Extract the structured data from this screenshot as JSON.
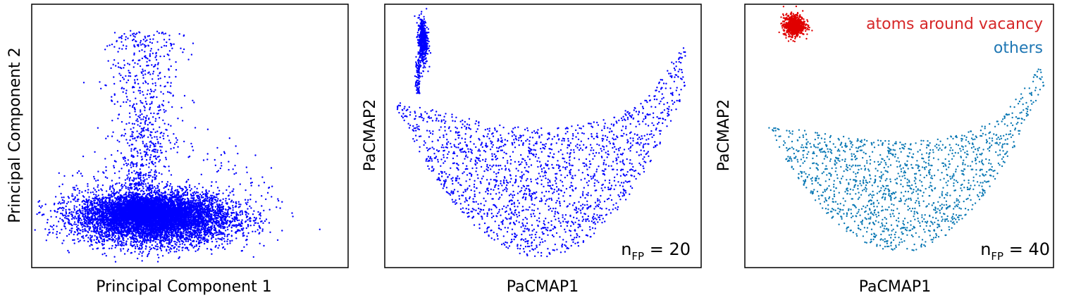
{
  "chart_data": [
    {
      "type": "scatter",
      "title": "",
      "xlabel": "Principal Component 1",
      "ylabel": "Principal Component 2",
      "xticks": "none",
      "yticks": "none",
      "grid": false,
      "xlim": [
        0,
        1
      ],
      "ylim": [
        0,
        1
      ],
      "color": "#0000ff",
      "clusters": [
        {
          "shape": "ellipse",
          "cx": 0.39,
          "cy": 0.19,
          "rx": 0.27,
          "ry": 0.11,
          "points": 6500
        },
        {
          "shape": "ellipse",
          "cx": 0.36,
          "cy": 0.21,
          "rx": 0.17,
          "ry": 0.06,
          "points": 2500
        },
        {
          "shape": "scatter-sparse",
          "cx": 0.35,
          "cy": 0.58,
          "rx": 0.1,
          "ry": 0.32,
          "points": 700
        },
        {
          "shape": "halo",
          "cx": 0.43,
          "cy": 0.22,
          "rx": 0.32,
          "ry": 0.17,
          "points": 250
        }
      ]
    },
    {
      "type": "scatter",
      "title": "",
      "xlabel": "PaCMAP1",
      "ylabel": "PaCMAP2",
      "xticks": "none",
      "yticks": "none",
      "grid": false,
      "xlim": [
        0,
        1
      ],
      "ylim": [
        0,
        1
      ],
      "color": "#0000ff",
      "annotation": {
        "base": "n",
        "sub": "FP",
        "text": " = 20"
      },
      "clusters": [
        {
          "shape": "crescent",
          "x0": 0.04,
          "x1": 0.95,
          "bottom_y": 0.04,
          "top_left_y": 0.63,
          "top_right_y": 0.72,
          "dip_y": 0.53,
          "points": 13000
        },
        {
          "shape": "blob",
          "cx": 0.12,
          "cy": 0.86,
          "rx": 0.015,
          "ry": 0.09,
          "points": 500
        },
        {
          "shape": "stem",
          "x": 0.105,
          "y0": 0.66,
          "y1": 0.78,
          "points": 80
        }
      ]
    },
    {
      "type": "scatter",
      "title": "",
      "xlabel": "PaCMAP1",
      "ylabel": "PaCMAP2",
      "xticks": "none",
      "yticks": "none",
      "grid": false,
      "xlim": [
        0,
        1
      ],
      "ylim": [
        0,
        1
      ],
      "legend": "top-right",
      "annotation": {
        "base": "n",
        "sub": "FP",
        "text": " = 40"
      },
      "series": [
        {
          "name": "atoms around vacancy",
          "color": "#e00000",
          "clusters": [
            {
              "shape": "blob",
              "cx": 0.16,
              "cy": 0.92,
              "rx": 0.035,
              "ry": 0.04,
              "points": 700
            }
          ]
        },
        {
          "name": "others",
          "color": "#0a78b4",
          "clusters": [
            {
              "shape": "crescent",
              "x0": 0.04,
              "x1": 0.97,
              "bottom_y": 0.06,
              "top_left_y": 0.54,
              "top_right_y": 0.66,
              "dip_y": 0.48,
              "points": 13000
            }
          ]
        }
      ]
    }
  ]
}
